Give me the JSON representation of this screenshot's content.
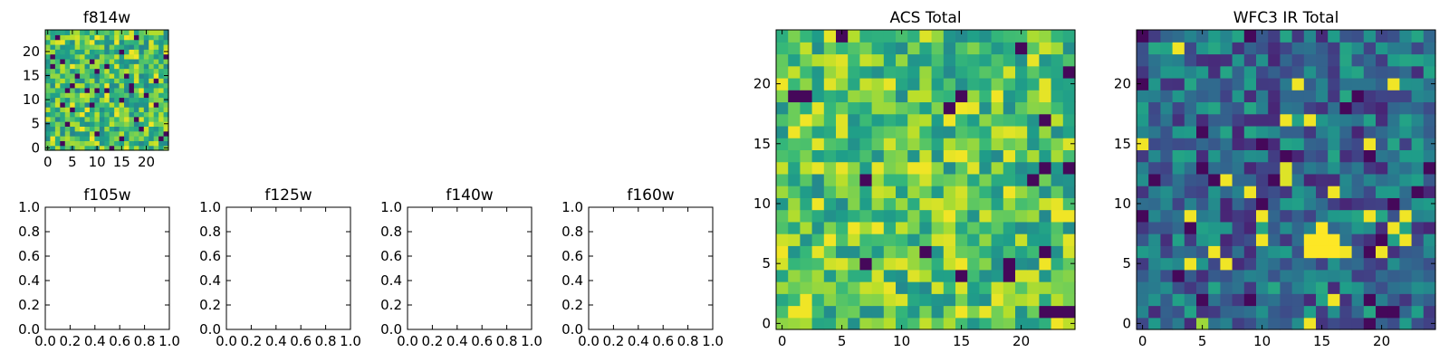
{
  "chart_data": [
    {
      "type": "heatmap",
      "title": "f814w",
      "xlim": [
        -0.5,
        24.5
      ],
      "ylim": [
        -0.5,
        24.5
      ],
      "xticks": [
        0,
        5,
        10,
        15,
        20
      ],
      "yticks": [
        0,
        5,
        10,
        15,
        20
      ],
      "colormap": "viridis",
      "seed": 814,
      "mean_level": 0.7,
      "bright_spots": []
    },
    {
      "type": "empty",
      "title": "f105w",
      "xlim": [
        0,
        1
      ],
      "ylim": [
        0,
        1
      ],
      "xticks": [
        "0.0",
        "0.2",
        "0.4",
        "0.6",
        "0.8",
        "1.0"
      ],
      "yticks": [
        "0.0",
        "0.2",
        "0.4",
        "0.6",
        "0.8",
        "1.0"
      ]
    },
    {
      "type": "empty",
      "title": "f125w",
      "xlim": [
        0,
        1
      ],
      "ylim": [
        0,
        1
      ],
      "xticks": [
        "0.0",
        "0.2",
        "0.4",
        "0.6",
        "0.8",
        "1.0"
      ],
      "yticks": [
        "0.0",
        "0.2",
        "0.4",
        "0.6",
        "0.8",
        "1.0"
      ]
    },
    {
      "type": "empty",
      "title": "f140w",
      "xlim": [
        0,
        1
      ],
      "ylim": [
        0,
        1
      ],
      "xticks": [
        "0.0",
        "0.2",
        "0.4",
        "0.6",
        "0.8",
        "1.0"
      ],
      "yticks": [
        "0.0",
        "0.2",
        "0.4",
        "0.6",
        "0.8",
        "1.0"
      ]
    },
    {
      "type": "empty",
      "title": "f160w",
      "xlim": [
        0,
        1
      ],
      "ylim": [
        0,
        1
      ],
      "xticks": [
        "0.0",
        "0.2",
        "0.4",
        "0.6",
        "0.8",
        "1.0"
      ],
      "yticks": [
        "0.0",
        "0.2",
        "0.4",
        "0.6",
        "0.8",
        "1.0"
      ]
    },
    {
      "type": "heatmap",
      "title": "ACS Total",
      "xlim": [
        -0.5,
        24.5
      ],
      "ylim": [
        -0.5,
        24.5
      ],
      "xticks": [
        0,
        5,
        10,
        15,
        20
      ],
      "yticks": [
        0,
        5,
        10,
        15,
        20
      ],
      "colormap": "viridis",
      "seed": 1234,
      "mean_level": 0.72,
      "bright_spots": []
    },
    {
      "type": "heatmap",
      "title": "WFC3 IR Total",
      "xlim": [
        -0.5,
        24.5
      ],
      "ylim": [
        -0.5,
        24.5
      ],
      "xticks": [
        0,
        5,
        10,
        15,
        20
      ],
      "yticks": [
        0,
        5,
        10,
        15,
        20
      ],
      "colormap": "viridis",
      "seed": 3,
      "mean_level": 0.35,
      "bright_spots": [
        {
          "x": 14,
          "y": 6,
          "w": 3,
          "h": 2,
          "value": 1.0
        },
        {
          "x": 15,
          "y": 8,
          "w": 1,
          "h": 1,
          "value": 1.0
        },
        {
          "x": 12,
          "y": 12,
          "w": 1,
          "h": 2,
          "value": 0.95
        },
        {
          "x": 5,
          "y": 0,
          "w": 1,
          "h": 1,
          "value": 0.85
        }
      ]
    }
  ]
}
